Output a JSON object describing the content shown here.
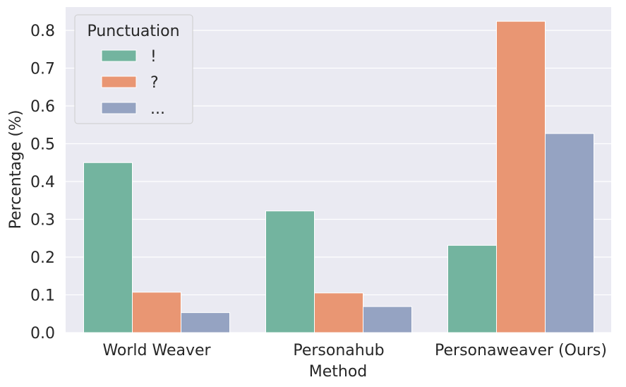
{
  "chart_data": {
    "type": "bar",
    "title": "",
    "xlabel": "Method",
    "ylabel": "Percentage (%)",
    "categories": [
      "World Weaver",
      "Personahub",
      "Personaweaver (Ours)"
    ],
    "ylim": [
      0,
      0.86
    ],
    "yticks": [
      "0.0",
      "0.1",
      "0.2",
      "0.3",
      "0.4",
      "0.5",
      "0.6",
      "0.7",
      "0.8"
    ],
    "grid": true,
    "legend": {
      "title": "Punctuation",
      "position": "top-left"
    },
    "series": [
      {
        "name": "!",
        "color": "#73b49f",
        "values": [
          0.45,
          0.322,
          0.231
        ]
      },
      {
        "name": "?",
        "color": "#e99673",
        "values": [
          0.107,
          0.105,
          0.824
        ]
      },
      {
        "name": "...",
        "color": "#95a3c2",
        "values": [
          0.053,
          0.069,
          0.527
        ]
      }
    ]
  }
}
